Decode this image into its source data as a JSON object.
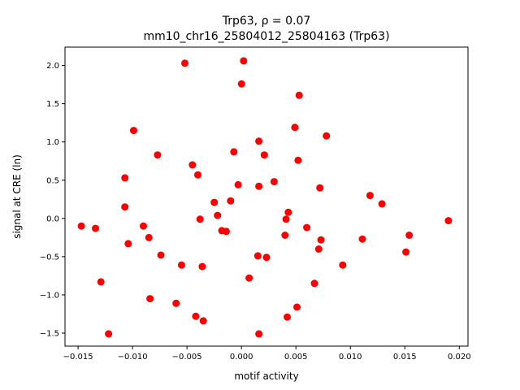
{
  "chart_data": {
    "type": "scatter",
    "title": "Trp63, ρ = 0.07",
    "subtitle": "mm10_chr16_25804012_25804163 (Trp63)",
    "xlabel": "motif activity",
    "ylabel": "signal at CRE (ln)",
    "xlim": [
      -0.0162,
      0.0208
    ],
    "ylim": [
      -1.67,
      2.24
    ],
    "x_ticks": [
      -0.015,
      -0.01,
      -0.005,
      0.0,
      0.005,
      0.01,
      0.015,
      0.02
    ],
    "x_tick_labels": [
      "−0.015",
      "−0.010",
      "−0.005",
      "0.000",
      "0.005",
      "0.010",
      "0.015",
      "0.020"
    ],
    "y_ticks": [
      -1.5,
      -1.0,
      -0.5,
      0.0,
      0.5,
      1.0,
      1.5,
      2.0
    ],
    "y_tick_labels": [
      "−1.5",
      "−1.0",
      "−0.5",
      "0.0",
      "0.5",
      "1.0",
      "1.5",
      "2.0"
    ],
    "grid": false,
    "marker_color": "#ff0000",
    "points": [
      {
        "x": -0.0147,
        "y": -0.1
      },
      {
        "x": -0.0134,
        "y": -0.13
      },
      {
        "x": -0.0129,
        "y": -0.83
      },
      {
        "x": -0.0122,
        "y": -1.51
      },
      {
        "x": -0.0107,
        "y": 0.53
      },
      {
        "x": -0.0107,
        "y": 0.15
      },
      {
        "x": -0.0104,
        "y": -0.33
      },
      {
        "x": -0.0099,
        "y": 1.15
      },
      {
        "x": -0.009,
        "y": -0.1
      },
      {
        "x": -0.0085,
        "y": -0.25
      },
      {
        "x": -0.0084,
        "y": -1.05
      },
      {
        "x": -0.0077,
        "y": 0.83
      },
      {
        "x": -0.0074,
        "y": -0.48
      },
      {
        "x": -0.006,
        "y": -1.11
      },
      {
        "x": -0.0055,
        "y": -0.61
      },
      {
        "x": -0.0052,
        "y": 2.03
      },
      {
        "x": -0.0045,
        "y": 0.7
      },
      {
        "x": -0.0042,
        "y": -1.28
      },
      {
        "x": -0.004,
        "y": 0.57
      },
      {
        "x": -0.0038,
        "y": -0.01
      },
      {
        "x": -0.0036,
        "y": -0.63
      },
      {
        "x": -0.0035,
        "y": -1.34
      },
      {
        "x": -0.0025,
        "y": 0.21
      },
      {
        "x": -0.0022,
        "y": 0.04
      },
      {
        "x": -0.0018,
        "y": -0.16
      },
      {
        "x": -0.0014,
        "y": -0.17
      },
      {
        "x": -0.001,
        "y": 0.23
      },
      {
        "x": -0.0007,
        "y": 0.87
      },
      {
        "x": -0.0003,
        "y": 0.44
      },
      {
        "x": 0.0,
        "y": 1.76
      },
      {
        "x": 0.0002,
        "y": 2.06
      },
      {
        "x": 0.0007,
        "y": -0.78
      },
      {
        "x": 0.0015,
        "y": -0.49
      },
      {
        "x": 0.0016,
        "y": 1.01
      },
      {
        "x": 0.0016,
        "y": 0.42
      },
      {
        "x": 0.0016,
        "y": -1.51
      },
      {
        "x": 0.0021,
        "y": 0.83
      },
      {
        "x": 0.0023,
        "y": -0.51
      },
      {
        "x": 0.003,
        "y": 0.48
      },
      {
        "x": 0.004,
        "y": -0.22
      },
      {
        "x": 0.0041,
        "y": -0.01
      },
      {
        "x": 0.0042,
        "y": -1.29
      },
      {
        "x": 0.0043,
        "y": 0.08
      },
      {
        "x": 0.0049,
        "y": 1.19
      },
      {
        "x": 0.0051,
        "y": -1.16
      },
      {
        "x": 0.0052,
        "y": 0.76
      },
      {
        "x": 0.0053,
        "y": 1.61
      },
      {
        "x": 0.006,
        "y": -0.12
      },
      {
        "x": 0.0067,
        "y": -0.85
      },
      {
        "x": 0.0071,
        "y": -0.4
      },
      {
        "x": 0.0072,
        "y": 0.4
      },
      {
        "x": 0.0073,
        "y": -0.28
      },
      {
        "x": 0.0078,
        "y": 1.08
      },
      {
        "x": 0.0093,
        "y": -0.61
      },
      {
        "x": 0.0111,
        "y": -0.27
      },
      {
        "x": 0.0118,
        "y": 0.3
      },
      {
        "x": 0.0129,
        "y": 0.19
      },
      {
        "x": 0.0151,
        "y": -0.44
      },
      {
        "x": 0.0154,
        "y": -0.22
      },
      {
        "x": 0.019,
        "y": -0.03
      }
    ]
  }
}
